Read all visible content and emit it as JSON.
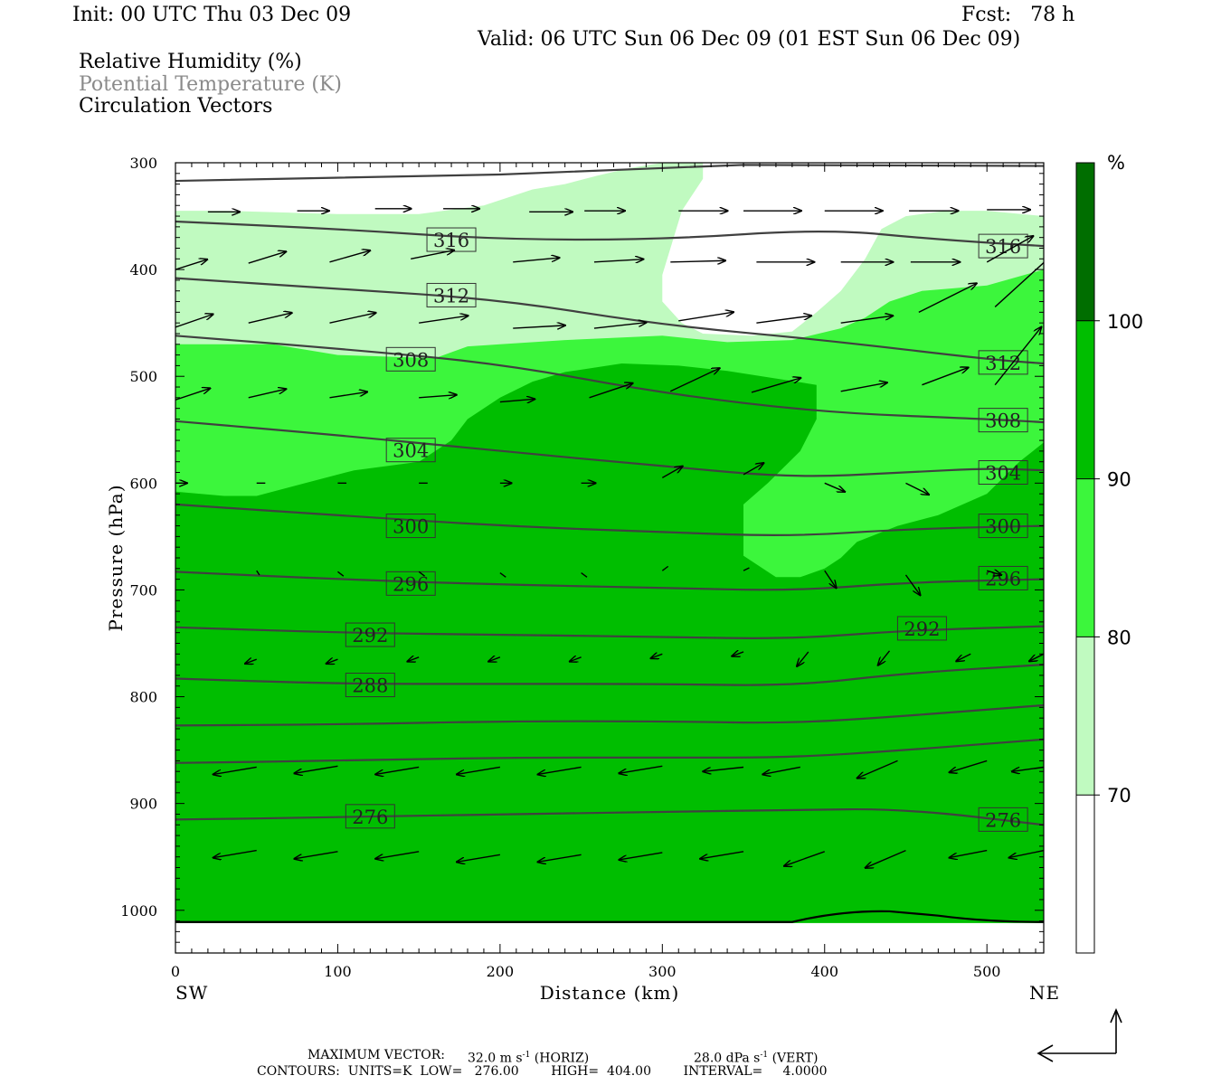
{
  "header": {
    "init": "Init: 00 UTC Thu 03 Dec 09",
    "fcst": "Fcst:   78 h",
    "valid": "Valid: 06 UTC Sun 06 Dec 09 (01 EST Sun 06 Dec 09)"
  },
  "fields": {
    "rh": "Relative Humidity (%)",
    "theta": "Potential Temperature (K)",
    "vectors": "Circulation Vectors"
  },
  "footer": {
    "max_vector_label": "MAXIMUM VECTOR:",
    "max_vector_horiz": "32.0 m s",
    "horiz_tag": "(HORIZ)",
    "max_vector_vert": "28.0 dPa s",
    "vert_tag": "(VERT)",
    "contours": "CONTOURS:  UNITS=K  LOW=   276.00        HIGH=  404.00        INTERVAL=     4.0000"
  },
  "colors": {
    "rh_70_80": "#c0fac0",
    "rh_80_90": "#3cf63c",
    "rh_90_100": "#00be00",
    "rh_100": "#006e00",
    "theta_line": "#404040"
  },
  "chart_data": {
    "type": "cross-section",
    "xlabel": "Distance (km)",
    "ylabel": "Pressure (hPa)",
    "x_ticks": [
      0,
      100,
      200,
      300,
      400,
      500
    ],
    "y_ticks": [
      300,
      400,
      500,
      600,
      700,
      800,
      900,
      1000
    ],
    "xlim": [
      0,
      535
    ],
    "ylim": [
      1040,
      300
    ],
    "x_end_labels": {
      "left": "SW",
      "right": "NE"
    },
    "colorbar": {
      "unit": "%",
      "levels": [
        70,
        80,
        90,
        100
      ],
      "colors": [
        "#ffffff",
        "#c0fac0",
        "#3cf63c",
        "#00be00",
        "#006e00"
      ]
    },
    "theta_contours": [
      {
        "value": 316,
        "pts": [
          [
            0,
            355
          ],
          [
            100,
            362
          ],
          [
            200,
            372
          ],
          [
            300,
            372
          ],
          [
            400,
            362
          ],
          [
            470,
            372
          ],
          [
            535,
            378
          ]
        ],
        "labels": [
          [
            170,
            372
          ],
          [
            510,
            378
          ]
        ]
      },
      {
        "value": 312,
        "pts": [
          [
            0,
            408
          ],
          [
            100,
            418
          ],
          [
            200,
            428
          ],
          [
            300,
            452
          ],
          [
            400,
            466
          ],
          [
            500,
            484
          ],
          [
            535,
            488
          ]
        ],
        "labels": [
          [
            170,
            424
          ],
          [
            510,
            487
          ]
        ]
      },
      {
        "value": 308,
        "pts": [
          [
            0,
            462
          ],
          [
            100,
            474
          ],
          [
            200,
            488
          ],
          [
            300,
            516
          ],
          [
            400,
            534
          ],
          [
            500,
            540
          ],
          [
            535,
            543
          ]
        ],
        "labels": [
          [
            145,
            484
          ],
          [
            510,
            541
          ]
        ]
      },
      {
        "value": 304,
        "pts": [
          [
            0,
            542
          ],
          [
            100,
            555
          ],
          [
            200,
            570
          ],
          [
            300,
            584
          ],
          [
            380,
            595
          ],
          [
            450,
            590
          ],
          [
            500,
            586
          ],
          [
            535,
            588
          ]
        ],
        "labels": [
          [
            145,
            569
          ],
          [
            510,
            590
          ]
        ]
      },
      {
        "value": 300,
        "pts": [
          [
            0,
            620
          ],
          [
            100,
            630
          ],
          [
            200,
            640
          ],
          [
            300,
            646
          ],
          [
            380,
            650
          ],
          [
            450,
            643
          ],
          [
            535,
            640
          ]
        ],
        "labels": [
          [
            145,
            640
          ],
          [
            510,
            640
          ]
        ]
      },
      {
        "value": 296,
        "pts": [
          [
            0,
            683
          ],
          [
            100,
            690
          ],
          [
            200,
            695
          ],
          [
            300,
            698
          ],
          [
            380,
            701
          ],
          [
            450,
            693
          ],
          [
            535,
            690
          ]
        ],
        "labels": [
          [
            145,
            694
          ],
          [
            510,
            689
          ]
        ]
      },
      {
        "value": 292,
        "pts": [
          [
            0,
            735
          ],
          [
            100,
            740
          ],
          [
            200,
            742
          ],
          [
            300,
            744
          ],
          [
            380,
            746
          ],
          [
            450,
            738
          ],
          [
            535,
            734
          ]
        ],
        "labels": [
          [
            120,
            742
          ],
          [
            460,
            736
          ]
        ]
      },
      {
        "value": 288,
        "pts": [
          [
            0,
            783
          ],
          [
            100,
            788
          ],
          [
            200,
            788
          ],
          [
            300,
            788
          ],
          [
            380,
            790
          ],
          [
            450,
            778
          ],
          [
            535,
            770
          ]
        ],
        "labels": [
          [
            120,
            789
          ]
        ]
      },
      {
        "value": 284,
        "pts": [
          [
            0,
            827
          ],
          [
            100,
            826
          ],
          [
            200,
            823
          ],
          [
            300,
            823
          ],
          [
            380,
            825
          ],
          [
            450,
            818
          ],
          [
            535,
            808
          ]
        ],
        "labels": []
      },
      {
        "value": 280,
        "pts": [
          [
            0,
            862
          ],
          [
            100,
            860
          ],
          [
            200,
            857
          ],
          [
            300,
            857
          ],
          [
            380,
            857
          ],
          [
            450,
            850
          ],
          [
            535,
            840
          ]
        ],
        "labels": []
      },
      {
        "value": 276,
        "pts": [
          [
            0,
            915
          ],
          [
            100,
            913
          ],
          [
            200,
            910
          ],
          [
            300,
            908
          ],
          [
            380,
            906
          ],
          [
            450,
            905
          ],
          [
            535,
            920
          ]
        ],
        "labels": [
          [
            120,
            912
          ],
          [
            510,
            915
          ]
        ]
      }
    ],
    "rh_regions": [
      {
        "min": 70,
        "pts": [
          [
            0,
            345
          ],
          [
            30,
            345
          ],
          [
            100,
            348
          ],
          [
            150,
            348
          ],
          [
            190,
            340
          ],
          [
            220,
            325
          ],
          [
            240,
            320
          ],
          [
            260,
            312
          ],
          [
            280,
            305
          ],
          [
            300,
            300
          ],
          [
            325,
            300
          ],
          [
            325,
            315
          ],
          [
            312,
            345
          ],
          [
            305,
            380
          ],
          [
            300,
            405
          ],
          [
            300,
            430
          ],
          [
            312,
            450
          ],
          [
            325,
            460
          ],
          [
            355,
            462
          ],
          [
            380,
            458
          ],
          [
            395,
            440
          ],
          [
            410,
            420
          ],
          [
            420,
            400
          ],
          [
            425,
            390
          ],
          [
            435,
            362
          ],
          [
            450,
            350
          ],
          [
            475,
            345
          ],
          [
            500,
            345
          ],
          [
            535,
            350
          ],
          [
            535,
            1012
          ],
          [
            0,
            1012
          ]
        ]
      },
      {
        "min": 80,
        "pts": [
          [
            0,
            470
          ],
          [
            60,
            470
          ],
          [
            100,
            480
          ],
          [
            140,
            482
          ],
          [
            160,
            483
          ],
          [
            180,
            472
          ],
          [
            200,
            470
          ],
          [
            240,
            466
          ],
          [
            300,
            462
          ],
          [
            340,
            468
          ],
          [
            380,
            466
          ],
          [
            410,
            455
          ],
          [
            425,
            445
          ],
          [
            440,
            430
          ],
          [
            460,
            420
          ],
          [
            500,
            415
          ],
          [
            535,
            400
          ],
          [
            535,
            1012
          ],
          [
            0,
            1012
          ]
        ]
      },
      {
        "min": 90,
        "pts": [
          [
            0,
            608
          ],
          [
            30,
            612
          ],
          [
            50,
            612
          ],
          [
            80,
            600
          ],
          [
            110,
            588
          ],
          [
            150,
            580
          ],
          [
            170,
            560
          ],
          [
            180,
            540
          ],
          [
            200,
            520
          ],
          [
            220,
            505
          ],
          [
            240,
            496
          ],
          [
            275,
            488
          ],
          [
            310,
            490
          ],
          [
            340,
            495
          ],
          [
            370,
            502
          ],
          [
            395,
            508
          ],
          [
            395,
            540
          ],
          [
            385,
            570
          ],
          [
            365,
            600
          ],
          [
            350,
            620
          ],
          [
            350,
            668
          ],
          [
            370,
            688
          ],
          [
            385,
            688
          ],
          [
            400,
            680
          ],
          [
            410,
            670
          ],
          [
            420,
            655
          ],
          [
            445,
            640
          ],
          [
            470,
            630
          ],
          [
            500,
            610
          ],
          [
            520,
            580
          ],
          [
            535,
            562
          ],
          [
            535,
            1012
          ],
          [
            0,
            1012
          ]
        ]
      }
    ],
    "vectors": [
      [
        20,
        346,
        22,
        0
      ],
      [
        75,
        345,
        22,
        0
      ],
      [
        123,
        343,
        25,
        0
      ],
      [
        165,
        343,
        25,
        0
      ],
      [
        218,
        346,
        30,
        0
      ],
      [
        252,
        345,
        28,
        0
      ],
      [
        310,
        345,
        34,
        0
      ],
      [
        350,
        345,
        40,
        0
      ],
      [
        400,
        345,
        40,
        0
      ],
      [
        452,
        345,
        34,
        0
      ],
      [
        500,
        344,
        30,
        0
      ],
      [
        0,
        400,
        22,
        7
      ],
      [
        45,
        394,
        26,
        8
      ],
      [
        95,
        393,
        28,
        8
      ],
      [
        145,
        390,
        30,
        6
      ],
      [
        208,
        393,
        32,
        3
      ],
      [
        258,
        393,
        34,
        2
      ],
      [
        305,
        393,
        38,
        1
      ],
      [
        358,
        393,
        40,
        0
      ],
      [
        410,
        393,
        36,
        0
      ],
      [
        453,
        393,
        34,
        0
      ],
      [
        500,
        393,
        32,
        18
      ],
      [
        0,
        454,
        26,
        9
      ],
      [
        45,
        450,
        30,
        7
      ],
      [
        95,
        450,
        32,
        7
      ],
      [
        150,
        450,
        34,
        5
      ],
      [
        208,
        455,
        36,
        2
      ],
      [
        258,
        455,
        36,
        4
      ],
      [
        310,
        448,
        38,
        6
      ],
      [
        358,
        450,
        38,
        5
      ],
      [
        410,
        450,
        36,
        5
      ],
      [
        458,
        440,
        40,
        20
      ],
      [
        505,
        435,
        44,
        40
      ],
      [
        0,
        522,
        24,
        8
      ],
      [
        45,
        520,
        26,
        6
      ],
      [
        95,
        520,
        26,
        4
      ],
      [
        150,
        520,
        26,
        2
      ],
      [
        200,
        524,
        24,
        2
      ],
      [
        255,
        520,
        30,
        10
      ],
      [
        305,
        514,
        34,
        16
      ],
      [
        355,
        515,
        34,
        10
      ],
      [
        410,
        514,
        32,
        6
      ],
      [
        460,
        508,
        32,
        12
      ],
      [
        505,
        508,
        32,
        40
      ],
      [
        0,
        600,
        8,
        0
      ],
      [
        50,
        600,
        6,
        0
      ],
      [
        100,
        600,
        6,
        0
      ],
      [
        150,
        600,
        6,
        0
      ],
      [
        200,
        600,
        8,
        0
      ],
      [
        250,
        600,
        10,
        0
      ],
      [
        300,
        595,
        14,
        8
      ],
      [
        350,
        592,
        14,
        8
      ],
      [
        400,
        600,
        14,
        -6
      ],
      [
        450,
        600,
        16,
        -8
      ],
      [
        50,
        682,
        2,
        -3
      ],
      [
        100,
        683,
        4,
        -3
      ],
      [
        150,
        683,
        4,
        -3
      ],
      [
        200,
        684,
        4,
        -3
      ],
      [
        250,
        684,
        4,
        -3
      ],
      [
        300,
        682,
        4,
        3
      ],
      [
        350,
        682,
        4,
        2
      ],
      [
        400,
        682,
        8,
        -12
      ],
      [
        450,
        686,
        10,
        -14
      ],
      [
        500,
        682,
        10,
        -3
      ],
      [
        50,
        765,
        -8,
        -3
      ],
      [
        100,
        765,
        -8,
        -3
      ],
      [
        150,
        763,
        -8,
        -3
      ],
      [
        200,
        763,
        -8,
        -3
      ],
      [
        250,
        763,
        -8,
        -3
      ],
      [
        300,
        760,
        -8,
        -3
      ],
      [
        350,
        758,
        -8,
        -3
      ],
      [
        390,
        758,
        -8,
        -10
      ],
      [
        440,
        757,
        -8,
        -10
      ],
      [
        490,
        760,
        -10,
        -5
      ],
      [
        535,
        760,
        -10,
        -5
      ],
      [
        50,
        866,
        -30,
        -5
      ],
      [
        100,
        865,
        -30,
        -5
      ],
      [
        150,
        866,
        -30,
        -5
      ],
      [
        200,
        866,
        -30,
        -5
      ],
      [
        250,
        866,
        -30,
        -5
      ],
      [
        300,
        865,
        -30,
        -5
      ],
      [
        350,
        866,
        -28,
        -3
      ],
      [
        385,
        866,
        -26,
        -5
      ],
      [
        445,
        860,
        -28,
        -12
      ],
      [
        500,
        860,
        -26,
        -8
      ],
      [
        535,
        866,
        -22,
        -3
      ],
      [
        50,
        944,
        -30,
        -5
      ],
      [
        100,
        945,
        -30,
        -5
      ],
      [
        150,
        945,
        -30,
        -5
      ],
      [
        200,
        948,
        -30,
        -5
      ],
      [
        250,
        948,
        -30,
        -5
      ],
      [
        300,
        946,
        -30,
        -5
      ],
      [
        350,
        945,
        -30,
        -5
      ],
      [
        400,
        945,
        -28,
        -10
      ],
      [
        450,
        944,
        -28,
        -12
      ],
      [
        500,
        944,
        -26,
        -5
      ],
      [
        535,
        944,
        -24,
        -5
      ]
    ]
  }
}
